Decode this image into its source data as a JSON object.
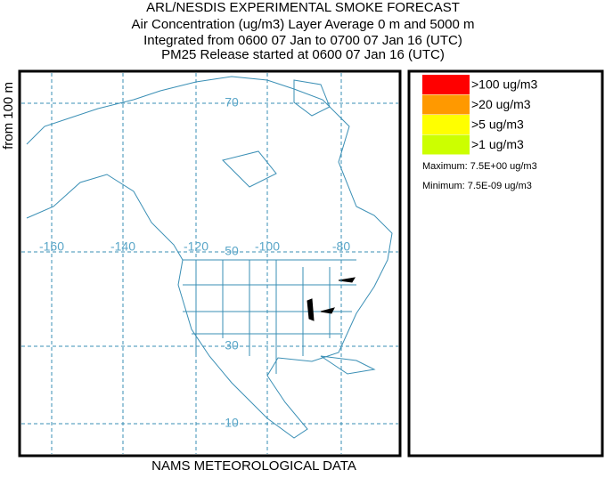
{
  "header": {
    "title": "ARL/NESDIS EXPERIMENTAL SMOKE FORECAST",
    "lines": [
      "Air Concentration (ug/m3) Layer Average    0 m and  5000 m",
      "Integrated from 0600 07 Jan to 0700 07 Jan 16 (UTC)",
      "PM25 Release started at 0600 07 Jan 16 (UTC)"
    ]
  },
  "side_label": "from  100 m",
  "footer": "NAMS METEOROLOGICAL DATA",
  "map": {
    "longitude_labels": [
      "-160",
      "-140",
      "-120",
      "-100",
      "-80"
    ],
    "latitude_labels": [
      "70",
      "50",
      "30",
      "10"
    ]
  },
  "legend": {
    "items": [
      {
        "label": ">100 ug/m3",
        "color": "#ff0000"
      },
      {
        "label": ">20 ug/m3",
        "color": "#ff9900"
      },
      {
        "label": ">5 ug/m3",
        "color": "#ffff00"
      },
      {
        "label": ">1 ug/m3",
        "color": "#ccff00"
      }
    ],
    "maximum": "Maximum: 7.5E+00 ug/m3",
    "minimum": "Minimum: 7.5E-09 ug/m3"
  }
}
